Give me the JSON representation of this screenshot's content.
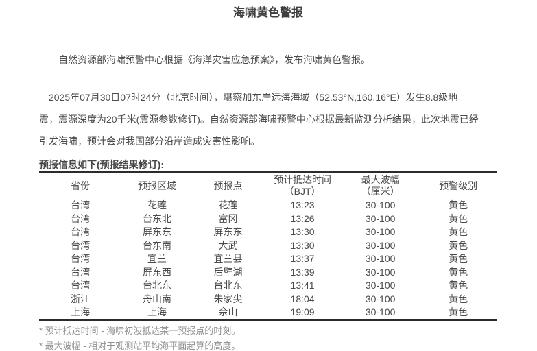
{
  "page": {
    "title": "海啸黄色警报",
    "paragraph1": "自然资源部海啸预警中心根据《海洋灾害应急预案》，发布海啸黄色警报。",
    "paragraph2_lines": [
      "2025年07月30日07时24分（北京时间），堪察加东岸远海海域（52.53°N,160.16°E）发生8.8级地",
      "震，震源深度为20千米(震源参数修订)。自然资源部海啸预警中心根据最新监测分析结果，此次地震已经",
      "引发海啸，预计会对我国部分沿岸造成灾害性影响。"
    ],
    "table_label": "预报信息如下(预报结果修订):"
  },
  "table": {
    "headers": [
      {
        "line1": "省份",
        "line2": ""
      },
      {
        "line1": "预报区域",
        "line2": ""
      },
      {
        "line1": "预报点",
        "line2": ""
      },
      {
        "line1": "预计抵达时间",
        "line2": "（BJT）"
      },
      {
        "line1": "最大波幅",
        "line2": "（厘米）"
      },
      {
        "line1": "预警级别",
        "line2": ""
      }
    ],
    "rows": [
      [
        "台湾",
        "花莲",
        "花莲",
        "13:23",
        "30-100",
        "黄色"
      ],
      [
        "台湾",
        "台东北",
        "富冈",
        "13:26",
        "30-100",
        "黄色"
      ],
      [
        "台湾",
        "屏东东",
        "屏东东",
        "13:30",
        "30-100",
        "黄色"
      ],
      [
        "台湾",
        "台东南",
        "大武",
        "13:30",
        "30-100",
        "黄色"
      ],
      [
        "台湾",
        "宜兰",
        "宜兰县",
        "13:37",
        "30-100",
        "黄色"
      ],
      [
        "台湾",
        "屏东西",
        "后壁湖",
        "13:39",
        "30-100",
        "黄色"
      ],
      [
        "台湾",
        "台北东",
        "台北东",
        "13:41",
        "30-100",
        "黄色"
      ],
      [
        "浙江",
        "舟山南",
        "朱家尖",
        "18:04",
        "30-100",
        "黄色"
      ],
      [
        "上海",
        "上海",
        "佘山",
        "19:09",
        "30-100",
        "黄色"
      ]
    ]
  },
  "footnotes": [
    "* 预计抵达时间 - 海啸初波抵达某一预报点的时刻。",
    "* 最大波幅 - 相对于观测站平均海平面起算的高度。"
  ],
  "colors": {
    "text": "#4a4a4a",
    "title": "#3f3f3f",
    "footnote": "#8f8f8f",
    "table_border": "#2b2b2b",
    "background": "#ffffff"
  }
}
